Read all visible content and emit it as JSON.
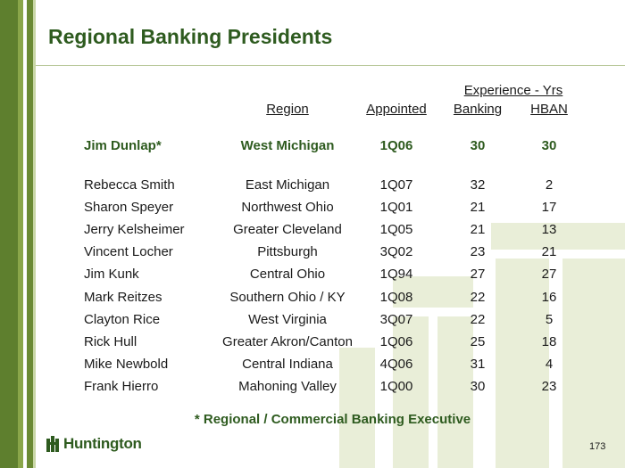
{
  "slide": {
    "title": "Regional Banking Presidents",
    "page_number": "173",
    "footnote": "* Regional / Commercial Banking Executive",
    "brand": "Huntington"
  },
  "table": {
    "group_header": "Experience - Yrs",
    "headers": {
      "region": "Region",
      "appointed": "Appointed",
      "banking": "Banking",
      "hban": "HBAN"
    },
    "featured": {
      "name": "Jim Dunlap*",
      "region": "West Michigan",
      "appointed": "1Q06",
      "banking": "30",
      "hban": "30"
    },
    "rows": [
      {
        "name": "Rebecca Smith",
        "region": "East Michigan",
        "appointed": "1Q07",
        "banking": "32",
        "hban": "2"
      },
      {
        "name": "Sharon Speyer",
        "region": "Northwest Ohio",
        "appointed": "1Q01",
        "banking": "21",
        "hban": "17"
      },
      {
        "name": "Jerry Kelsheimer",
        "region": "Greater Cleveland",
        "appointed": "1Q05",
        "banking": "21",
        "hban": "13"
      },
      {
        "name": "Vincent Locher",
        "region": "Pittsburgh",
        "appointed": "3Q02",
        "banking": "23",
        "hban": "21"
      },
      {
        "name": "Jim Kunk",
        "region": "Central Ohio",
        "appointed": "1Q94",
        "banking": "27",
        "hban": "27"
      },
      {
        "name": "Mark Reitzes",
        "region": "Southern Ohio / KY",
        "appointed": "1Q08",
        "banking": "22",
        "hban": "16"
      },
      {
        "name": "Clayton Rice",
        "region": "West Virginia",
        "appointed": "3Q07",
        "banking": "22",
        "hban": "5"
      },
      {
        "name": "Rick Hull",
        "region": "Greater Akron/Canton",
        "appointed": "1Q06",
        "banking": "25",
        "hban": "18"
      },
      {
        "name": "Mike Newbold",
        "region": "Central Indiana",
        "appointed": "4Q06",
        "banking": "31",
        "hban": "4"
      },
      {
        "name": "Frank Hierro",
        "region": "Mahoning Valley",
        "appointed": "1Q00",
        "banking": "30",
        "hban": "23"
      }
    ]
  },
  "colors": {
    "accent_green": "#2e5b1f",
    "band_green": "#5e7f2e",
    "watermark": "#e9eed8"
  }
}
